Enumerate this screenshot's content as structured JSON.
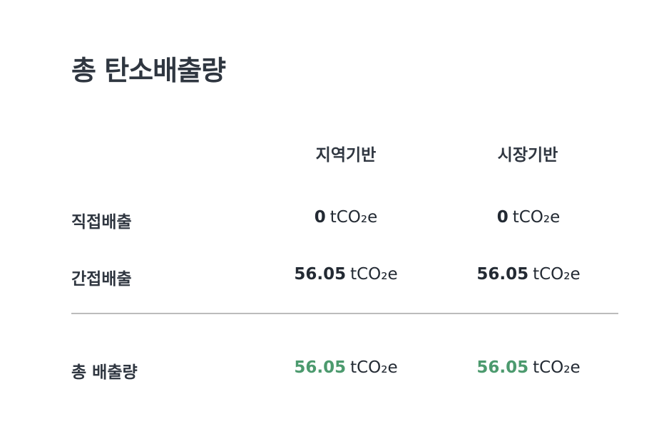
{
  "title": "총 탄소배출량",
  "columns": {
    "location_based": "지역기반",
    "market_based": "시장기반"
  },
  "unit": "tCO₂e",
  "rows": [
    {
      "label": "직접배출",
      "location_value": "0",
      "market_value": "0"
    },
    {
      "label": "간접배출",
      "location_value": "56.05",
      "market_value": "56.05"
    },
    {
      "label": "총 배출량",
      "location_value": "56.05",
      "market_value": "56.05"
    }
  ],
  "colors": {
    "total_value": "#4c9a6e",
    "divider": "#bcbcbc",
    "text": "#2f3640"
  }
}
